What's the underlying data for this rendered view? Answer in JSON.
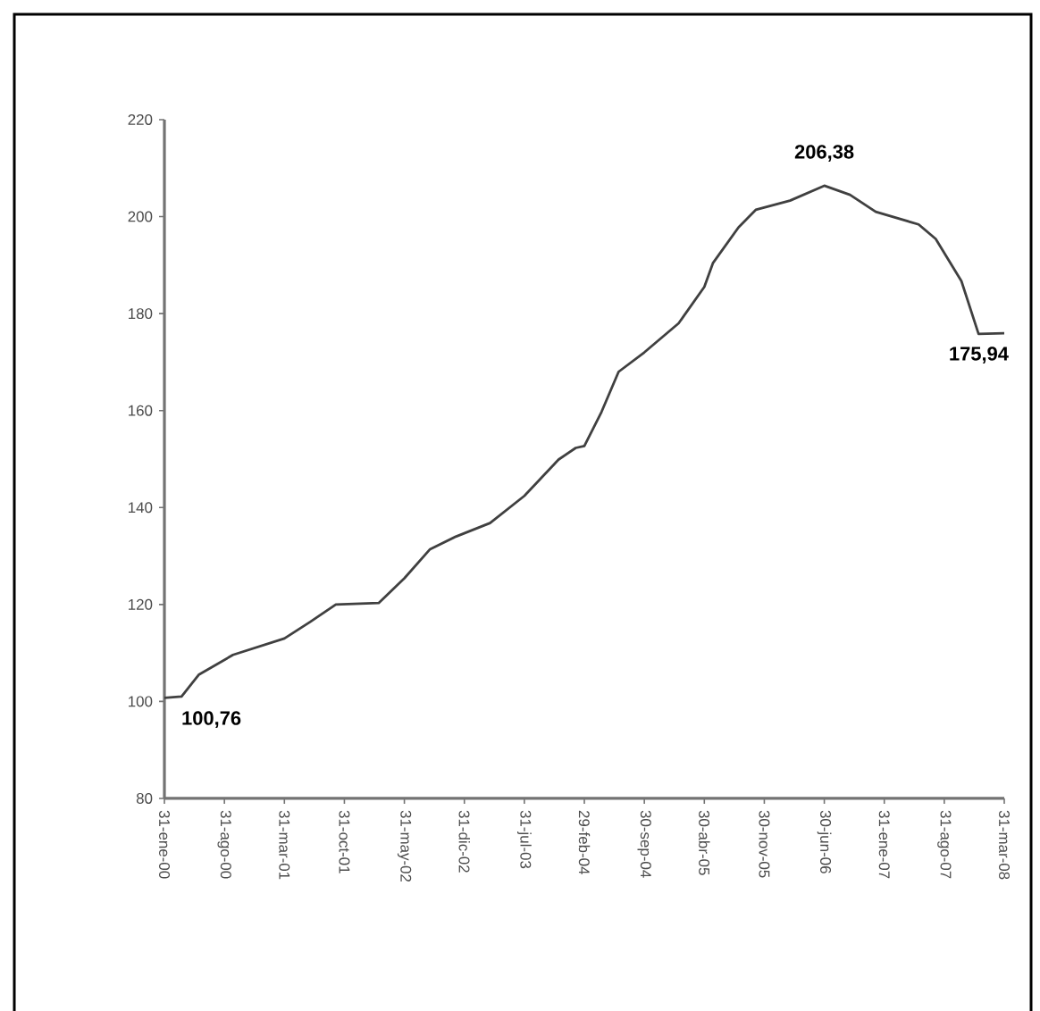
{
  "chart_data": {
    "type": "line",
    "color": "#404040",
    "x": [
      "2000-01",
      "2000-03",
      "2000-05",
      "2000-09",
      "2001-03",
      "2001-06",
      "2001-09",
      "2002-02",
      "2002-05",
      "2002-08",
      "2002-11",
      "2003-03",
      "2003-07",
      "2003-11",
      "2004-01",
      "2004-02",
      "2004-04",
      "2004-06",
      "2004-09",
      "2005-01",
      "2005-04",
      "2005-05",
      "2005-08",
      "2005-10",
      "2006-02",
      "2006-06",
      "2006-09",
      "2006-12",
      "2007-05",
      "2007-07",
      "2007-10",
      "2007-12",
      "2008-03"
    ],
    "values": [
      100.76,
      101,
      105.5,
      109.6,
      113,
      116.4,
      120,
      120.3,
      125.4,
      131.4,
      134,
      136.8,
      142.4,
      149.9,
      152.3,
      152.7,
      159.7,
      168,
      172,
      178,
      185.5,
      190.4,
      197.8,
      201.4,
      203.3,
      206.38,
      204.5,
      201,
      198.4,
      195.4,
      186.7,
      175.8,
      175.94
    ],
    "xlim": [
      "2000-01",
      "2008-03"
    ],
    "xticks": [
      {
        "value": "2000-01",
        "label": "31-ene-00"
      },
      {
        "value": "2000-08",
        "label": "31-ago-00"
      },
      {
        "value": "2001-03",
        "label": "31-mar-01"
      },
      {
        "value": "2001-10",
        "label": "31-oct-01"
      },
      {
        "value": "2002-05",
        "label": "31-may-02"
      },
      {
        "value": "2002-12",
        "label": "31-dic-02"
      },
      {
        "value": "2003-07",
        "label": "31-jul-03"
      },
      {
        "value": "2004-02",
        "label": "29-feb-04"
      },
      {
        "value": "2004-09",
        "label": "30-sep-04"
      },
      {
        "value": "2005-04",
        "label": "30-abr-05"
      },
      {
        "value": "2005-11",
        "label": "30-nov-05"
      },
      {
        "value": "2006-06",
        "label": "30-jun-06"
      },
      {
        "value": "2007-01",
        "label": "31-ene-07"
      },
      {
        "value": "2007-08",
        "label": "31-ago-07"
      },
      {
        "value": "2008-03",
        "label": "31-mar-08"
      }
    ],
    "ylim": [
      80,
      220
    ],
    "yticks": [
      80,
      100,
      120,
      140,
      160,
      180,
      200,
      220
    ],
    "annotations": [
      {
        "text": "100,76",
        "x": "2000-01",
        "y": 100.76
      },
      {
        "text": "206,38",
        "x": "2006-06",
        "y": 206.38
      },
      {
        "text": "175,94",
        "x": "2008-03",
        "y": 175.94
      }
    ],
    "grid": false
  }
}
